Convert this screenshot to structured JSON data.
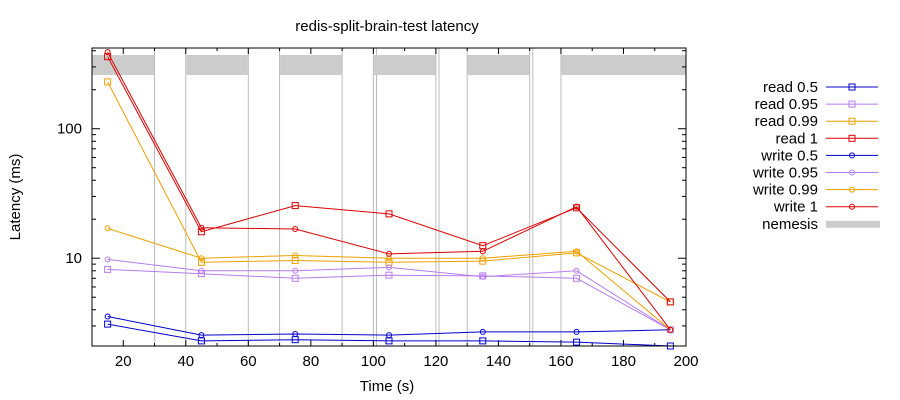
{
  "chart_data": {
    "type": "line",
    "title": "redis-split-brain-test latency",
    "xlabel": "Time (s)",
    "ylabel": "Latency (ms)",
    "xlim": [
      10,
      200
    ],
    "ylim": [
      2.1,
      420
    ],
    "yscale": "log",
    "x_ticks": [
      20,
      40,
      60,
      80,
      100,
      120,
      140,
      160,
      180,
      200
    ],
    "y_major_ticks": [
      10,
      100
    ],
    "y_minor_ticks": [
      3,
      4,
      5,
      6,
      7,
      8,
      9,
      20,
      30,
      40,
      50,
      60,
      70,
      80,
      90,
      200,
      300,
      400
    ],
    "legend_position": "outside-right",
    "series": [
      {
        "name": "read 0.5",
        "color": "#0000cc",
        "marker": "square",
        "x": [
          15,
          45,
          75,
          105,
          135,
          165,
          195
        ],
        "y": [
          3.1,
          2.3,
          2.35,
          2.3,
          2.3,
          2.25,
          2.1
        ]
      },
      {
        "name": "read 0.95",
        "color": "#b77cf0",
        "marker": "square",
        "x": [
          15,
          45,
          75,
          105,
          135,
          165,
          195
        ],
        "y": [
          8.2,
          7.6,
          7.0,
          7.4,
          7.3,
          7.0,
          2.8
        ]
      },
      {
        "name": "read 0.99",
        "color": "#f0a000",
        "marker": "square",
        "x": [
          15,
          45,
          75,
          105,
          135,
          165,
          195
        ],
        "y": [
          230,
          9.3,
          9.6,
          9.3,
          9.5,
          11.0,
          4.6
        ]
      },
      {
        "name": "read 1",
        "color": "#dd0000",
        "marker": "square",
        "x": [
          15,
          45,
          75,
          105,
          135,
          165,
          195
        ],
        "y": [
          360,
          16.0,
          25.5,
          22.0,
          12.5,
          24.5,
          4.6
        ]
      },
      {
        "name": "write 0.5",
        "color": "#0000cc",
        "marker": "circle",
        "x": [
          15,
          45,
          75,
          105,
          135,
          165,
          195
        ],
        "y": [
          3.55,
          2.55,
          2.6,
          2.55,
          2.7,
          2.7,
          2.8
        ]
      },
      {
        "name": "write 0.95",
        "color": "#b77cf0",
        "marker": "circle",
        "x": [
          15,
          45,
          75,
          105,
          135,
          165,
          195
        ],
        "y": [
          9.8,
          8.0,
          8.0,
          8.5,
          7.2,
          8.0,
          2.8
        ]
      },
      {
        "name": "write 0.99",
        "color": "#f0a000",
        "marker": "circle",
        "x": [
          15,
          45,
          75,
          105,
          135,
          165,
          195
        ],
        "y": [
          17.0,
          10.0,
          10.5,
          10.0,
          10.0,
          11.3,
          2.8
        ]
      },
      {
        "name": "write 1",
        "color": "#dd0000",
        "marker": "circle",
        "x": [
          15,
          45,
          75,
          105,
          135,
          165,
          195
        ],
        "y": [
          390,
          17.2,
          16.8,
          10.8,
          11.3,
          25.0,
          2.8
        ]
      }
    ],
    "nemesis": {
      "name": "nemesis",
      "color": "#cccccc",
      "line_color": "#bbbbbb",
      "intervals": [
        [
          10,
          30
        ],
        [
          40,
          60
        ],
        [
          70,
          90
        ],
        [
          100,
          120
        ],
        [
          130,
          150
        ],
        [
          160,
          200
        ]
      ],
      "line_times": [
        10,
        30,
        40,
        60,
        70,
        90,
        100,
        101,
        120,
        121,
        130,
        150,
        151,
        160,
        200
      ]
    }
  }
}
